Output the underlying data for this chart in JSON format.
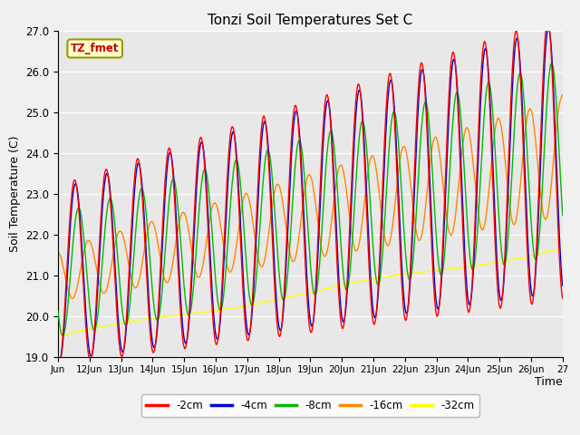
{
  "title": "Tonzi Soil Temperatures Set C",
  "xlabel": "Time",
  "ylabel": "Soil Temperature (C)",
  "ylim": [
    19.0,
    27.0
  ],
  "yticks": [
    19.0,
    20.0,
    21.0,
    22.0,
    23.0,
    24.0,
    25.0,
    26.0,
    27.0
  ],
  "annotation": "TZ_fmet",
  "annotation_color": "#cc0000",
  "annotation_bg": "#ffffcc",
  "annotation_edge": "#999900",
  "plot_bg": "#e8e8e8",
  "fig_bg": "#f0f0f0",
  "line_colors": {
    "-2cm": "#ff0000",
    "-4cm": "#0000cc",
    "-8cm": "#00bb00",
    "-16cm": "#ff8800",
    "-32cm": "#ffff00"
  }
}
